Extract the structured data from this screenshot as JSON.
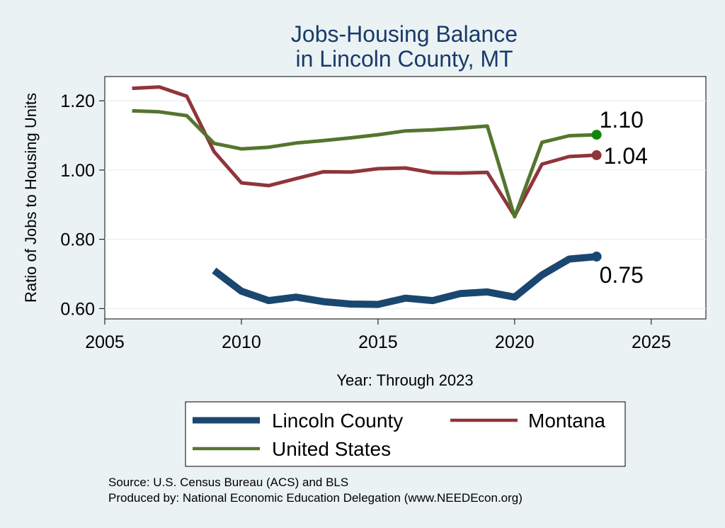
{
  "chart_data": {
    "type": "line",
    "title": [
      "Jobs-Housing Balance",
      "in Lincoln County, MT"
    ],
    "xlabel": "Year: Through 2023",
    "ylabel": "Ratio of Jobs to Housing Units",
    "xlim": [
      2005,
      2027
    ],
    "ylim": [
      0.57,
      1.27
    ],
    "xticks": [
      2005,
      2010,
      2015,
      2020,
      2025
    ],
    "yticks": [
      0.6,
      0.8,
      1.0,
      1.2
    ],
    "xtick_labels": [
      "2005",
      "2010",
      "2015",
      "2020",
      "2025"
    ],
    "ytick_labels": [
      "0.60",
      "0.80",
      "1.00",
      "1.20"
    ],
    "grid": true,
    "legend_position": "bottom",
    "series": [
      {
        "name": "Lincoln County",
        "color": "#1a476f",
        "x": [
          2009,
          2010,
          2011,
          2012,
          2013,
          2014,
          2015,
          2016,
          2017,
          2018,
          2019,
          2020,
          2021,
          2022,
          2023
        ],
        "values": [
          0.71,
          0.65,
          0.623,
          0.633,
          0.62,
          0.613,
          0.612,
          0.63,
          0.623,
          0.643,
          0.648,
          0.633,
          0.697,
          0.743,
          0.75
        ],
        "end_label": "0.75"
      },
      {
        "name": "Montana",
        "color": "#90353b",
        "x": [
          2006,
          2007,
          2008,
          2009,
          2010,
          2011,
          2012,
          2013,
          2014,
          2015,
          2016,
          2017,
          2018,
          2019,
          2020,
          2021,
          2022,
          2023
        ],
        "values": [
          1.236,
          1.24,
          1.213,
          1.053,
          0.963,
          0.955,
          0.975,
          0.995,
          0.994,
          1.004,
          1.006,
          0.992,
          0.991,
          0.993,
          0.867,
          1.017,
          1.039,
          1.043
        ],
        "end_label": "1.04"
      },
      {
        "name": "United States",
        "color": "#55752f",
        "x": [
          2006,
          2007,
          2008,
          2009,
          2010,
          2011,
          2012,
          2013,
          2014,
          2015,
          2016,
          2017,
          2018,
          2019,
          2020,
          2021,
          2022,
          2023
        ],
        "values": [
          1.171,
          1.168,
          1.157,
          1.077,
          1.061,
          1.066,
          1.078,
          1.085,
          1.093,
          1.102,
          1.113,
          1.116,
          1.121,
          1.127,
          0.865,
          1.08,
          1.099,
          1.102
        ],
        "end_label": "1.10",
        "end_marker_color": "#13850d"
      }
    ],
    "source_lines": [
      "Source: U.S. Census Bureau (ACS) and BLS",
      "Produced by: National Economic Education Delegation (www.NEEDEcon.org)"
    ]
  }
}
